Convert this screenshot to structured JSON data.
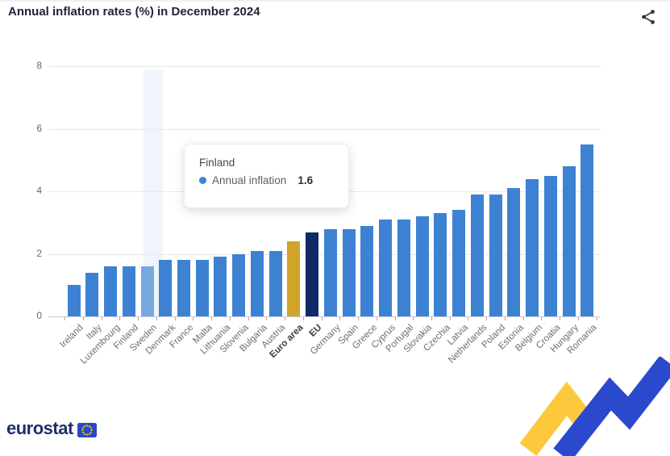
{
  "header": {
    "title": "Annual inflation rates (%) in December 2024"
  },
  "icons": {
    "share": "share-icon",
    "eu_flag": "eu-flag-icon"
  },
  "chart_data": {
    "type": "bar",
    "title": "Annual inflation rates (%) in December 2024",
    "xlabel": "",
    "ylabel": "",
    "ylim": [
      0,
      8
    ],
    "yticks": [
      0,
      2,
      4,
      6,
      8
    ],
    "grid": true,
    "legend": "none",
    "series_name": "Annual inflation",
    "categories": [
      "Ireland",
      "Italy",
      "Luxembourg",
      "Finland",
      "Sweden",
      "Denmark",
      "France",
      "Malta",
      "Lithuania",
      "Slovenia",
      "Bulgaria",
      "Austria",
      "Euro area",
      "EU",
      "Germany",
      "Spain",
      "Greece",
      "Cyprus",
      "Portugal",
      "Slovakia",
      "Czechia",
      "Latvia",
      "Netherlands",
      "Poland",
      "Estonia",
      "Belgium",
      "Croatia",
      "Hungary",
      "Romania"
    ],
    "values": [
      1.0,
      1.4,
      1.6,
      1.6,
      1.6,
      1.8,
      1.8,
      1.8,
      1.9,
      2.0,
      2.1,
      2.1,
      2.4,
      2.7,
      2.8,
      2.8,
      2.9,
      3.1,
      3.1,
      3.2,
      3.3,
      3.4,
      3.9,
      3.9,
      4.1,
      4.4,
      4.5,
      4.8,
      5.5
    ],
    "bold_categories": [
      "Euro area",
      "EU"
    ],
    "special_colors": {
      "Euro area": "#d0a42b",
      "EU": "#102a66"
    },
    "highlighted_category": "Sweden",
    "colors": {
      "bar": "#3d82d2",
      "bar_highlight": "#77a9e1",
      "grid": "#e8e8ec",
      "band": "#f1f4fa"
    }
  },
  "tooltip": {
    "country": "Finland",
    "series_label": "Annual inflation",
    "value": "1.6",
    "marker_color": "#3d85d6"
  },
  "footer": {
    "brand": "eurostat"
  }
}
